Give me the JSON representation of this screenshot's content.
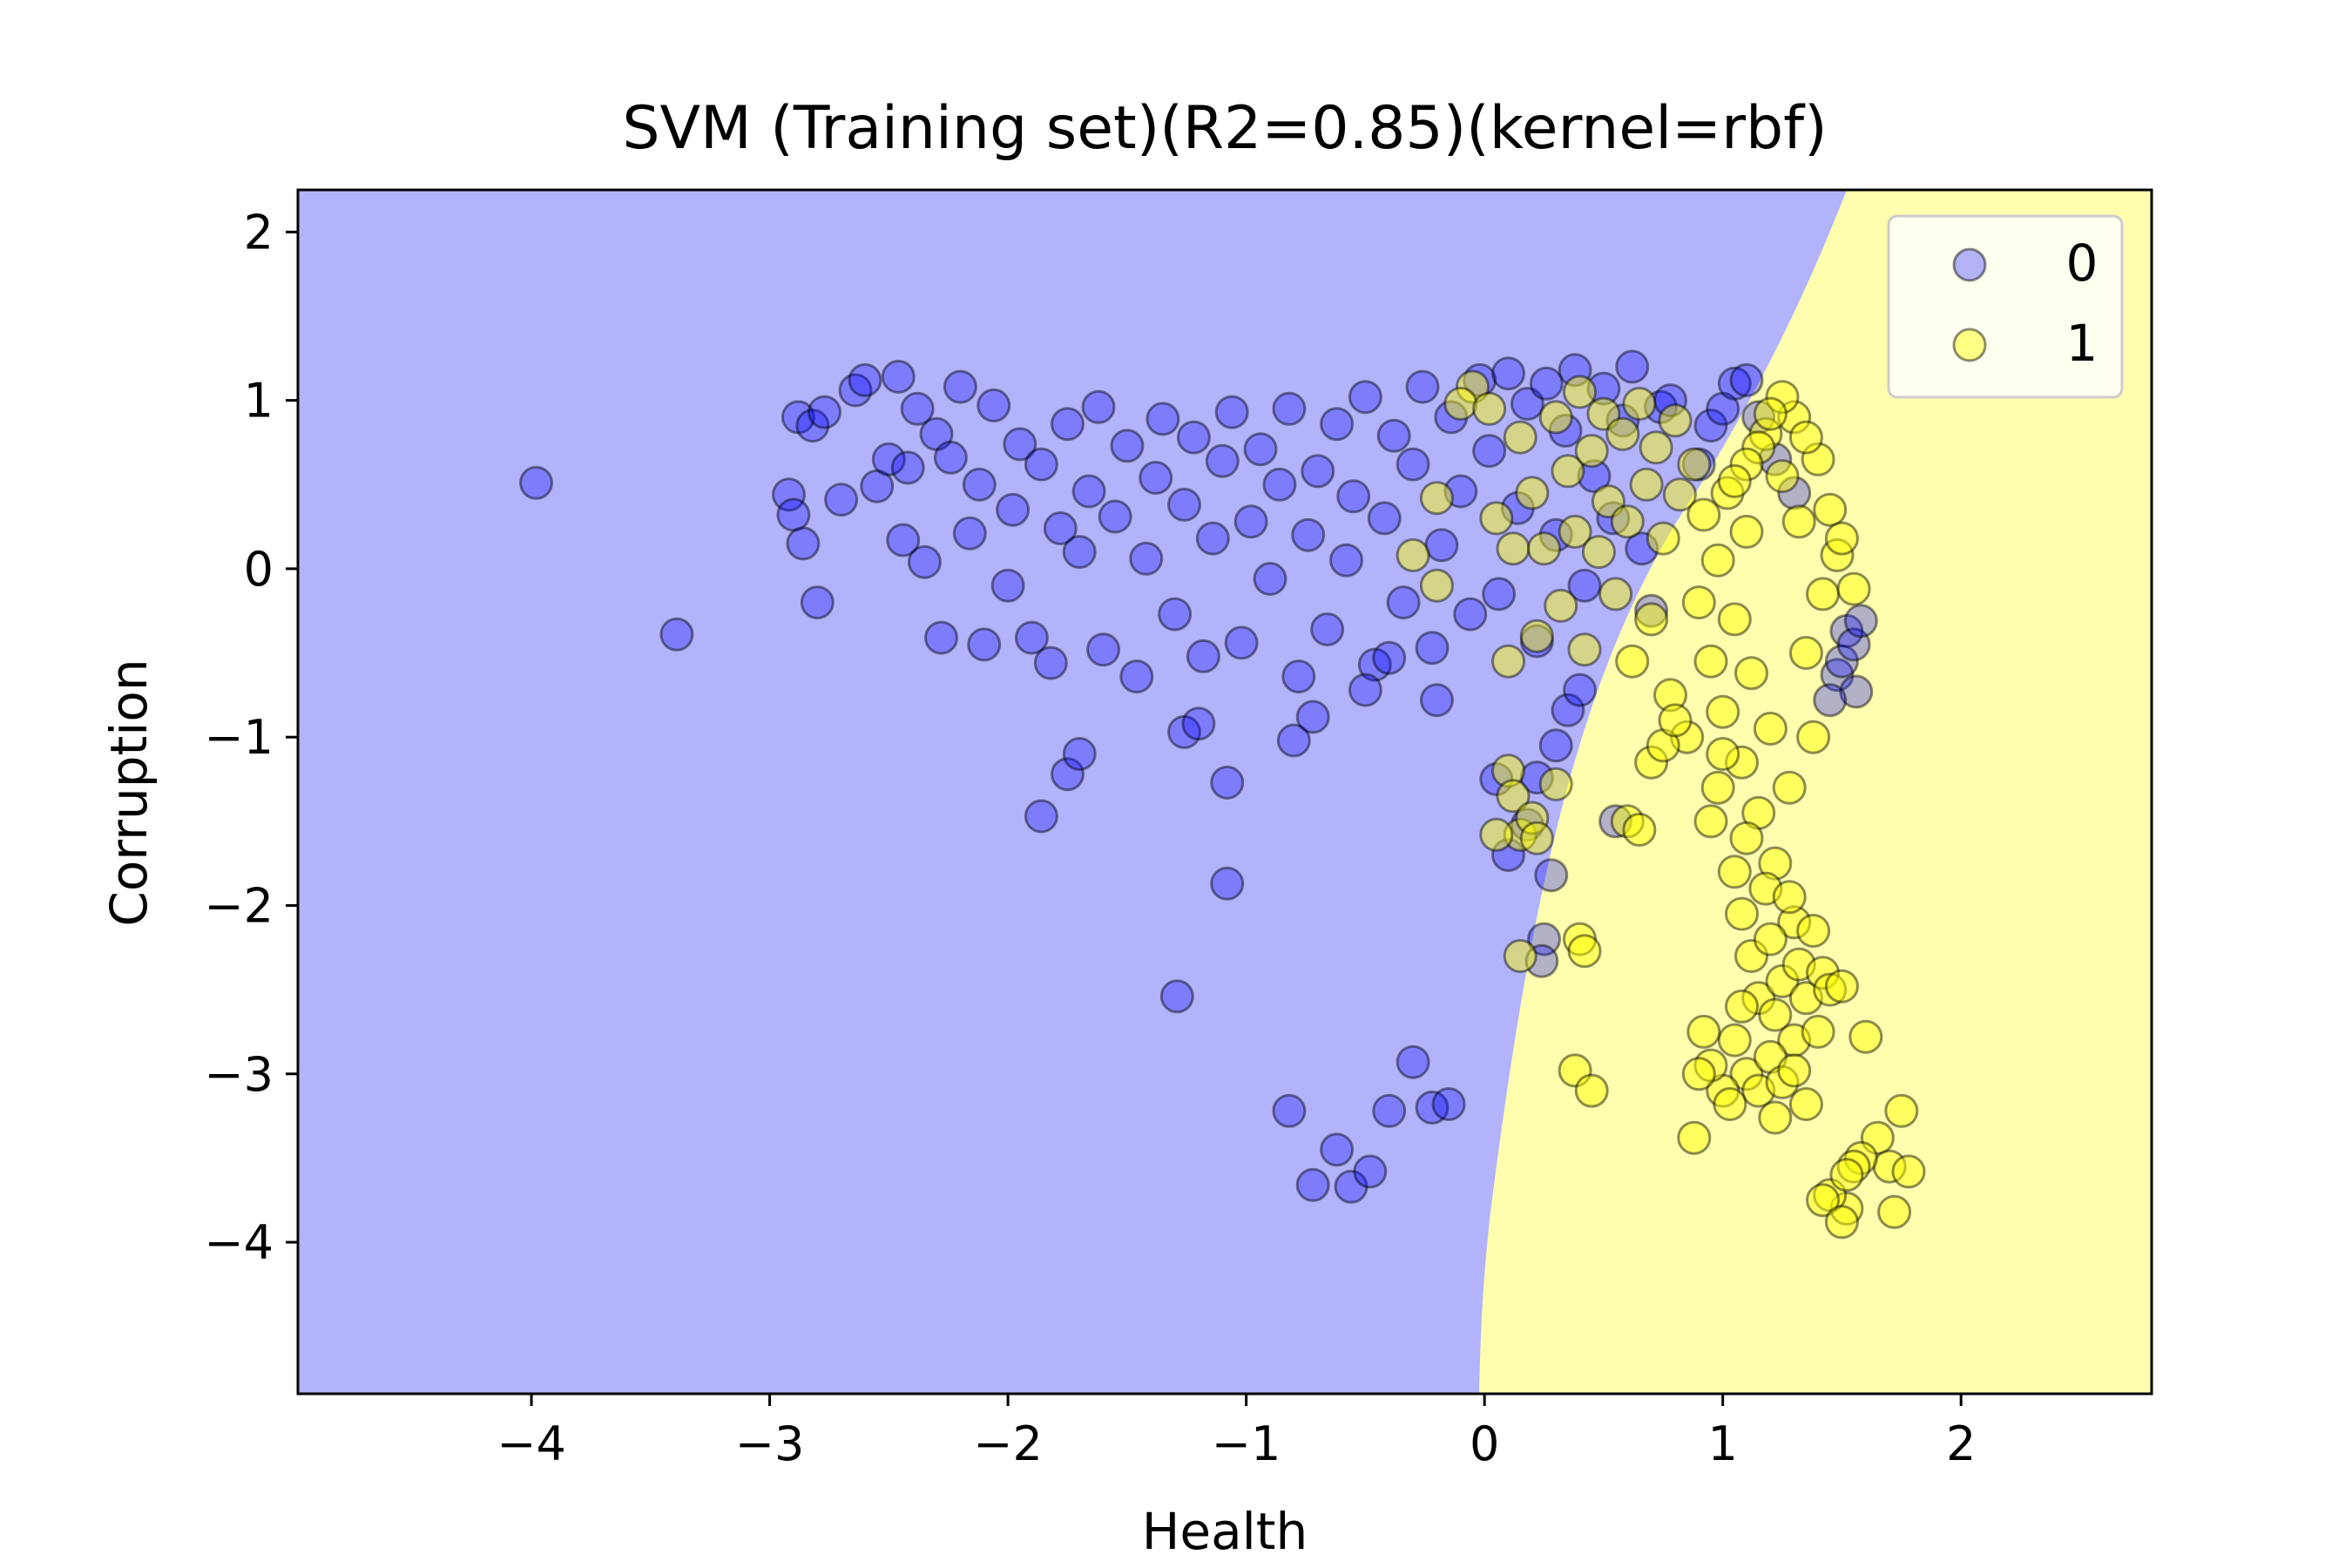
{
  "chart_data": {
    "type": "scatter",
    "title": "SVM (Training set)(R2=0.85)(kernel=rbf)",
    "xlabel": "Health",
    "ylabel": "Corruption",
    "xlim": [
      -4.98,
      2.8
    ],
    "ylim": [
      -4.9,
      2.25
    ],
    "xticks": [
      -4,
      -3,
      -2,
      -1,
      0,
      1,
      2
    ],
    "yticks": [
      2,
      1,
      0,
      -1,
      -2,
      -3,
      -4
    ],
    "legend": {
      "placement": "top-right"
    },
    "region_colors": {
      "0": "#b3b3fb",
      "1": "#fffeae"
    },
    "series": [
      {
        "name": "0",
        "color": "#0000ff",
        "points": [
          [
            -3.98,
            0.51
          ],
          [
            -3.39,
            -0.39
          ],
          [
            -2.92,
            0.44
          ],
          [
            -2.9,
            0.32
          ],
          [
            -2.86,
            0.15
          ],
          [
            -2.88,
            0.9
          ],
          [
            -2.82,
            0.85
          ],
          [
            -2.8,
            -0.2
          ],
          [
            -2.77,
            0.93
          ],
          [
            -2.7,
            0.41
          ],
          [
            -2.64,
            1.06
          ],
          [
            -2.6,
            1.12
          ],
          [
            -2.55,
            0.49
          ],
          [
            -2.5,
            0.65
          ],
          [
            -2.46,
            1.14
          ],
          [
            -2.44,
            0.17
          ],
          [
            -2.42,
            0.6
          ],
          [
            -2.38,
            0.95
          ],
          [
            -2.35,
            0.04
          ],
          [
            -2.3,
            0.8
          ],
          [
            -2.28,
            -0.41
          ],
          [
            -2.24,
            0.66
          ],
          [
            -2.2,
            1.08
          ],
          [
            -2.16,
            0.21
          ],
          [
            -2.12,
            0.5
          ],
          [
            -2.1,
            -0.45
          ],
          [
            -2.06,
            0.97
          ],
          [
            -2.0,
            -0.1
          ],
          [
            -1.98,
            0.35
          ],
          [
            -1.95,
            0.74
          ],
          [
            -1.9,
            -0.41
          ],
          [
            -1.86,
            0.62
          ],
          [
            -1.82,
            -0.56
          ],
          [
            -1.78,
            0.24
          ],
          [
            -1.75,
            0.86
          ],
          [
            -1.7,
            0.1
          ],
          [
            -1.66,
            0.46
          ],
          [
            -1.62,
            0.96
          ],
          [
            -1.6,
            -0.48
          ],
          [
            -1.55,
            0.31
          ],
          [
            -1.5,
            0.73
          ],
          [
            -1.46,
            -0.64
          ],
          [
            -1.42,
            0.06
          ],
          [
            -1.38,
            0.54
          ],
          [
            -1.35,
            0.89
          ],
          [
            -1.3,
            -0.27
          ],
          [
            -1.26,
            0.38
          ],
          [
            -1.22,
            0.78
          ],
          [
            -1.18,
            -0.52
          ],
          [
            -1.14,
            0.18
          ],
          [
            -1.1,
            0.64
          ],
          [
            -1.06,
            0.93
          ],
          [
            -1.02,
            -0.44
          ],
          [
            -0.98,
            0.28
          ],
          [
            -0.94,
            0.71
          ],
          [
            -0.9,
            -0.06
          ],
          [
            -0.86,
            0.5
          ],
          [
            -0.82,
            0.95
          ],
          [
            -0.78,
            -0.64
          ],
          [
            -0.74,
            0.2
          ],
          [
            -0.7,
            0.58
          ],
          [
            -0.66,
            -0.36
          ],
          [
            -0.62,
            0.86
          ],
          [
            -0.58,
            0.05
          ],
          [
            -0.55,
            0.43
          ],
          [
            -0.5,
            1.02
          ],
          [
            -0.46,
            -0.57
          ],
          [
            -0.42,
            0.3
          ],
          [
            -0.38,
            0.79
          ],
          [
            -0.34,
            -0.2
          ],
          [
            -0.3,
            0.62
          ],
          [
            -0.26,
            1.08
          ],
          [
            -0.22,
            -0.47
          ],
          [
            -0.18,
            0.14
          ],
          [
            -0.14,
            0.9
          ],
          [
            -0.1,
            0.46
          ],
          [
            -0.06,
            -0.27
          ],
          [
            -0.02,
            1.12
          ],
          [
            0.02,
            0.7
          ],
          [
            0.06,
            -0.15
          ],
          [
            0.1,
            1.16
          ],
          [
            0.14,
            0.36
          ],
          [
            0.18,
            0.98
          ],
          [
            0.22,
            -0.43
          ],
          [
            0.26,
            1.1
          ],
          [
            0.3,
            0.2
          ],
          [
            0.34,
            0.82
          ],
          [
            0.38,
            1.18
          ],
          [
            0.42,
            -0.1
          ],
          [
            0.46,
            0.55
          ],
          [
            0.5,
            1.07
          ],
          [
            0.54,
            0.3
          ],
          [
            0.58,
            0.88
          ],
          [
            0.62,
            1.2
          ],
          [
            0.66,
            0.12
          ],
          [
            0.7,
            -0.25
          ],
          [
            0.74,
            0.96
          ],
          [
            0.78,
            1.0
          ],
          [
            0.9,
            0.62
          ],
          [
            0.95,
            0.85
          ],
          [
            1.0,
            0.95
          ],
          [
            1.05,
            1.1
          ],
          [
            1.1,
            1.12
          ],
          [
            1.15,
            0.9
          ],
          [
            1.22,
            0.65
          ],
          [
            1.3,
            0.45
          ],
          [
            -1.86,
            -1.47
          ],
          [
            -1.75,
            -1.22
          ],
          [
            -1.7,
            -1.1
          ],
          [
            -1.08,
            -1.87
          ],
          [
            -1.08,
            -1.27
          ],
          [
            -1.29,
            -2.54
          ],
          [
            -1.26,
            -0.97
          ],
          [
            -1.2,
            -0.92
          ],
          [
            -0.8,
            -1.02
          ],
          [
            -0.72,
            -0.88
          ],
          [
            -0.5,
            -0.72
          ],
          [
            -0.4,
            -0.53
          ],
          [
            -0.2,
            -0.78
          ],
          [
            -0.82,
            -3.22
          ],
          [
            -0.72,
            -3.66
          ],
          [
            -0.62,
            -3.45
          ],
          [
            -0.56,
            -3.67
          ],
          [
            -0.48,
            -3.58
          ],
          [
            -0.4,
            -3.22
          ],
          [
            -0.3,
            -2.93
          ],
          [
            -0.22,
            -3.2
          ],
          [
            -0.15,
            -3.18
          ],
          [
            0.05,
            -1.25
          ],
          [
            0.1,
            -1.7
          ],
          [
            0.18,
            -1.52
          ],
          [
            0.22,
            -1.24
          ],
          [
            0.25,
            -2.2
          ],
          [
            0.28,
            -1.82
          ],
          [
            0.24,
            -2.33
          ],
          [
            0.3,
            -1.05
          ],
          [
            0.35,
            -0.84
          ],
          [
            0.4,
            -0.72
          ],
          [
            0.55,
            -1.5
          ],
          [
            1.48,
            -0.63
          ],
          [
            1.52,
            -0.37
          ],
          [
            1.56,
            -0.73
          ],
          [
            1.5,
            -0.55
          ],
          [
            1.55,
            -0.45
          ],
          [
            1.45,
            -0.78
          ],
          [
            1.58,
            -0.31
          ]
        ]
      },
      {
        "name": "1",
        "color": "#ffff00",
        "points": [
          [
            -0.05,
            1.08
          ],
          [
            -0.1,
            0.98
          ],
          [
            -0.2,
            0.42
          ],
          [
            -0.3,
            0.08
          ],
          [
            -0.2,
            -0.1
          ],
          [
            0.02,
            0.95
          ],
          [
            0.05,
            0.3
          ],
          [
            0.1,
            -0.55
          ],
          [
            0.12,
            0.12
          ],
          [
            0.15,
            0.78
          ],
          [
            0.2,
            0.45
          ],
          [
            0.22,
            -0.4
          ],
          [
            0.25,
            0.12
          ],
          [
            0.3,
            0.9
          ],
          [
            0.32,
            -0.22
          ],
          [
            0.35,
            0.58
          ],
          [
            0.38,
            0.22
          ],
          [
            0.4,
            1.05
          ],
          [
            0.42,
            -0.48
          ],
          [
            0.45,
            0.7
          ],
          [
            0.48,
            0.1
          ],
          [
            0.5,
            0.92
          ],
          [
            0.52,
            0.4
          ],
          [
            0.55,
            -0.15
          ],
          [
            0.58,
            0.8
          ],
          [
            0.6,
            0.28
          ],
          [
            0.62,
            -0.55
          ],
          [
            0.65,
            0.98
          ],
          [
            0.68,
            0.5
          ],
          [
            0.7,
            -0.3
          ],
          [
            0.72,
            0.72
          ],
          [
            0.75,
            0.18
          ],
          [
            0.78,
            -0.75
          ],
          [
            0.8,
            0.88
          ],
          [
            0.82,
            0.44
          ],
          [
            0.85,
            -1.0
          ],
          [
            0.88,
            0.62
          ],
          [
            0.9,
            -0.2
          ],
          [
            0.92,
            0.32
          ],
          [
            0.95,
            -0.55
          ],
          [
            0.98,
            0.05
          ],
          [
            1.0,
            -0.85
          ],
          [
            1.02,
            0.45
          ],
          [
            1.05,
            -0.3
          ],
          [
            1.08,
            -1.15
          ],
          [
            1.1,
            0.22
          ],
          [
            1.12,
            -0.62
          ],
          [
            1.15,
            -1.45
          ],
          [
            1.18,
            0.8
          ],
          [
            1.2,
            -0.95
          ],
          [
            1.22,
            -1.75
          ],
          [
            1.25,
            0.55
          ],
          [
            1.28,
            -1.3
          ],
          [
            1.3,
            -2.1
          ],
          [
            1.32,
            0.28
          ],
          [
            1.35,
            -0.5
          ],
          [
            1.38,
            -1.0
          ],
          [
            1.4,
            0.65
          ],
          [
            1.42,
            -0.15
          ],
          [
            1.45,
            0.35
          ],
          [
            1.48,
            0.08
          ],
          [
            1.5,
            0.18
          ],
          [
            1.55,
            -0.12
          ],
          [
            1.3,
            0.9
          ],
          [
            1.35,
            0.78
          ],
          [
            1.25,
            1.02
          ],
          [
            1.2,
            0.92
          ],
          [
            1.15,
            0.72
          ],
          [
            1.1,
            0.62
          ],
          [
            1.05,
            0.52
          ],
          [
            0.95,
            -1.5
          ],
          [
            0.98,
            -1.3
          ],
          [
            1.0,
            -1.1
          ],
          [
            1.05,
            -1.8
          ],
          [
            1.08,
            -2.05
          ],
          [
            1.1,
            -1.6
          ],
          [
            1.12,
            -2.3
          ],
          [
            1.15,
            -2.55
          ],
          [
            1.18,
            -1.9
          ],
          [
            1.2,
            -2.2
          ],
          [
            1.22,
            -2.65
          ],
          [
            1.25,
            -2.45
          ],
          [
            1.28,
            -1.95
          ],
          [
            1.3,
            -2.8
          ],
          [
            1.32,
            -2.35
          ],
          [
            1.35,
            -2.55
          ],
          [
            1.38,
            -2.15
          ],
          [
            1.4,
            -2.75
          ],
          [
            1.42,
            -2.4
          ],
          [
            1.45,
            -2.5
          ],
          [
            1.5,
            -2.48
          ],
          [
            1.05,
            -2.8
          ],
          [
            1.1,
            -3.0
          ],
          [
            1.15,
            -3.1
          ],
          [
            1.2,
            -2.9
          ],
          [
            1.25,
            -3.05
          ],
          [
            1.0,
            -3.1
          ],
          [
            0.95,
            -2.95
          ],
          [
            0.9,
            -3.0
          ],
          [
            0.88,
            -3.38
          ],
          [
            0.92,
            -2.75
          ],
          [
            1.03,
            -3.18
          ],
          [
            1.08,
            -2.6
          ],
          [
            1.22,
            -3.26
          ],
          [
            1.3,
            -2.98
          ],
          [
            1.35,
            -3.18
          ],
          [
            0.38,
            -2.98
          ],
          [
            0.45,
            -3.1
          ],
          [
            0.4,
            -2.2
          ],
          [
            0.42,
            -2.27
          ],
          [
            0.1,
            -1.2
          ],
          [
            0.12,
            -1.35
          ],
          [
            0.15,
            -1.58
          ],
          [
            0.2,
            -1.48
          ],
          [
            0.3,
            -1.28
          ],
          [
            0.05,
            -1.58
          ],
          [
            0.22,
            -1.6
          ],
          [
            0.15,
            -2.3
          ],
          [
            0.6,
            -1.5
          ],
          [
            0.65,
            -1.55
          ],
          [
            0.7,
            -1.15
          ],
          [
            0.75,
            -1.05
          ],
          [
            0.8,
            -0.9
          ],
          [
            1.6,
            -2.78
          ],
          [
            1.65,
            -3.38
          ],
          [
            1.7,
            -3.55
          ],
          [
            1.75,
            -3.22
          ],
          [
            1.78,
            -3.58
          ],
          [
            1.72,
            -3.82
          ],
          [
            1.58,
            -3.5
          ],
          [
            1.52,
            -3.8
          ],
          [
            1.45,
            -3.72
          ],
          [
            1.42,
            -3.75
          ],
          [
            1.5,
            -3.88
          ],
          [
            1.55,
            -3.55
          ],
          [
            1.52,
            -3.6
          ]
        ]
      }
    ]
  }
}
